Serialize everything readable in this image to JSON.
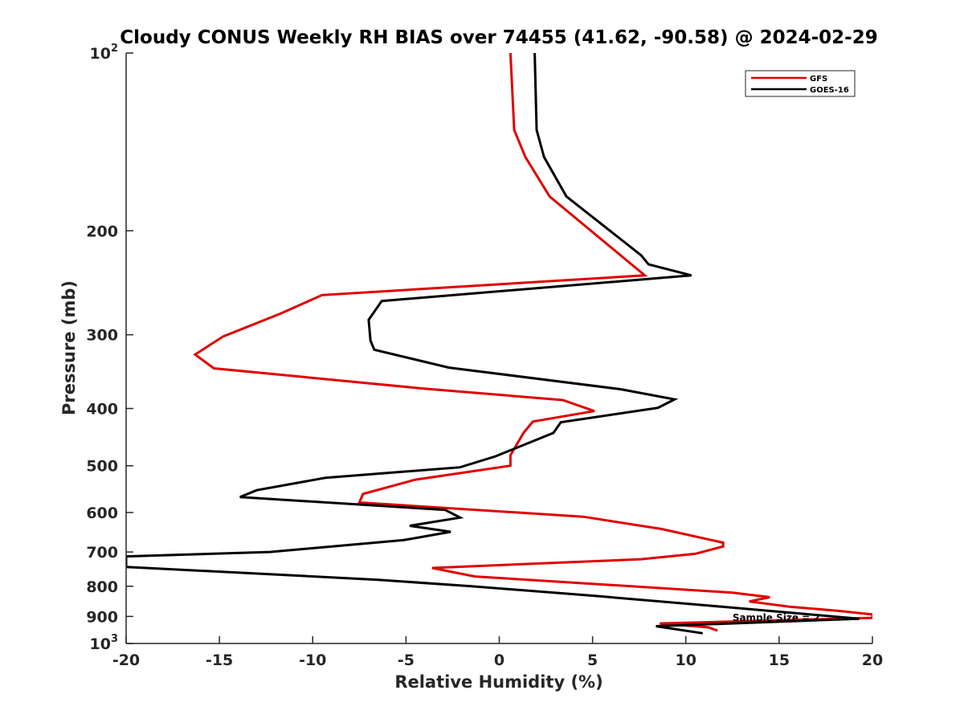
{
  "chart_data": {
    "type": "line",
    "title": "Cloudy CONUS Weekly RH BIAS over 74455 (41.62, -90.58) @ 2024-02-29",
    "xlabel": "Relative Humidity (%)",
    "ylabel": "Pressure (mb)",
    "xlim": [
      -20,
      20
    ],
    "ylim": [
      100,
      1000
    ],
    "y_scale": "log",
    "y_reversed": true,
    "grid": false,
    "legend_position": "top-right",
    "x_ticks": [
      {
        "value": -20,
        "label": "-20"
      },
      {
        "value": -15,
        "label": "-15"
      },
      {
        "value": -10,
        "label": "-10"
      },
      {
        "value": -5,
        "label": "-5"
      },
      {
        "value": 0,
        "label": "0"
      },
      {
        "value": 5,
        "label": "5"
      },
      {
        "value": 10,
        "label": "10"
      },
      {
        "value": 15,
        "label": "15"
      },
      {
        "value": 20,
        "label": "20"
      }
    ],
    "y_ticks": [
      {
        "value": 100,
        "base": "10",
        "exp": "2"
      },
      {
        "value": 200,
        "label": "200"
      },
      {
        "value": 300,
        "label": "300"
      },
      {
        "value": 400,
        "label": "400"
      },
      {
        "value": 500,
        "label": "500"
      },
      {
        "value": 600,
        "label": "600"
      },
      {
        "value": 700,
        "label": "700"
      },
      {
        "value": 800,
        "label": "800"
      },
      {
        "value": 900,
        "label": "900"
      },
      {
        "value": 1000,
        "base": "10",
        "exp": "3"
      }
    ],
    "series": [
      {
        "name": "GFS",
        "color": "#e00000",
        "points": [
          [
            0.6,
            100
          ],
          [
            0.8,
            135
          ],
          [
            1.4,
            150
          ],
          [
            2.7,
            175
          ],
          [
            7.8,
            238
          ],
          [
            -9.5,
            257
          ],
          [
            -11.7,
            276
          ],
          [
            -14.8,
            302
          ],
          [
            -16.3,
            324
          ],
          [
            -15.3,
            342
          ],
          [
            -4.1,
            370
          ],
          [
            3.4,
            387
          ],
          [
            5.1,
            404
          ],
          [
            1.8,
            421
          ],
          [
            1.3,
            440
          ],
          [
            0.6,
            480
          ],
          [
            0.6,
            500
          ],
          [
            -4.5,
            528
          ],
          [
            -7.3,
            558
          ],
          [
            -7.5,
            577
          ],
          [
            4.5,
            610
          ],
          [
            8.7,
            640
          ],
          [
            12.0,
            675
          ],
          [
            12.0,
            685
          ],
          [
            10.5,
            705
          ],
          [
            7.6,
            720
          ],
          [
            -3.6,
            745
          ],
          [
            -1.3,
            770
          ],
          [
            12.5,
            820
          ],
          [
            14.5,
            835
          ],
          [
            13.4,
            849
          ],
          [
            15.6,
            867
          ],
          [
            18.1,
            880
          ],
          [
            20.0,
            893
          ],
          [
            20.0,
            905
          ],
          [
            8.6,
            925
          ],
          [
            11.2,
            939
          ],
          [
            11.7,
            951
          ]
        ]
      },
      {
        "name": "GOES-16",
        "color": "#000000",
        "points": [
          [
            1.9,
            100
          ],
          [
            2.0,
            135
          ],
          [
            2.4,
            150
          ],
          [
            3.6,
            175
          ],
          [
            7.6,
            220
          ],
          [
            8.0,
            228
          ],
          [
            10.3,
            238
          ],
          [
            -6.3,
            263
          ],
          [
            -7.0,
            283
          ],
          [
            -6.9,
            307
          ],
          [
            -6.7,
            318
          ],
          [
            -2.7,
            341
          ],
          [
            6.5,
            371
          ],
          [
            9.4,
            386
          ],
          [
            8.5,
            399
          ],
          [
            3.3,
            422
          ],
          [
            2.9,
            440
          ],
          [
            -0.2,
            482
          ],
          [
            -2.1,
            503
          ],
          [
            -9.3,
            524
          ],
          [
            -13.0,
            550
          ],
          [
            -13.9,
            565
          ],
          [
            -2.9,
            594
          ],
          [
            -2.1,
            612
          ],
          [
            -4.8,
            632
          ],
          [
            -2.6,
            647
          ],
          [
            -5.1,
            668
          ],
          [
            -12.3,
            700
          ],
          [
            -20.0,
            712
          ],
          [
            -20.0,
            742
          ],
          [
            -6.5,
            780
          ],
          [
            -1.5,
            800
          ],
          [
            5.0,
            830
          ],
          [
            12.0,
            867
          ],
          [
            19.3,
            908
          ],
          [
            8.4,
            935
          ],
          [
            10.9,
            961
          ]
        ]
      }
    ],
    "annotations": [
      {
        "text": "Sample Size = 2",
        "x": 12.5,
        "y": 905
      }
    ]
  }
}
